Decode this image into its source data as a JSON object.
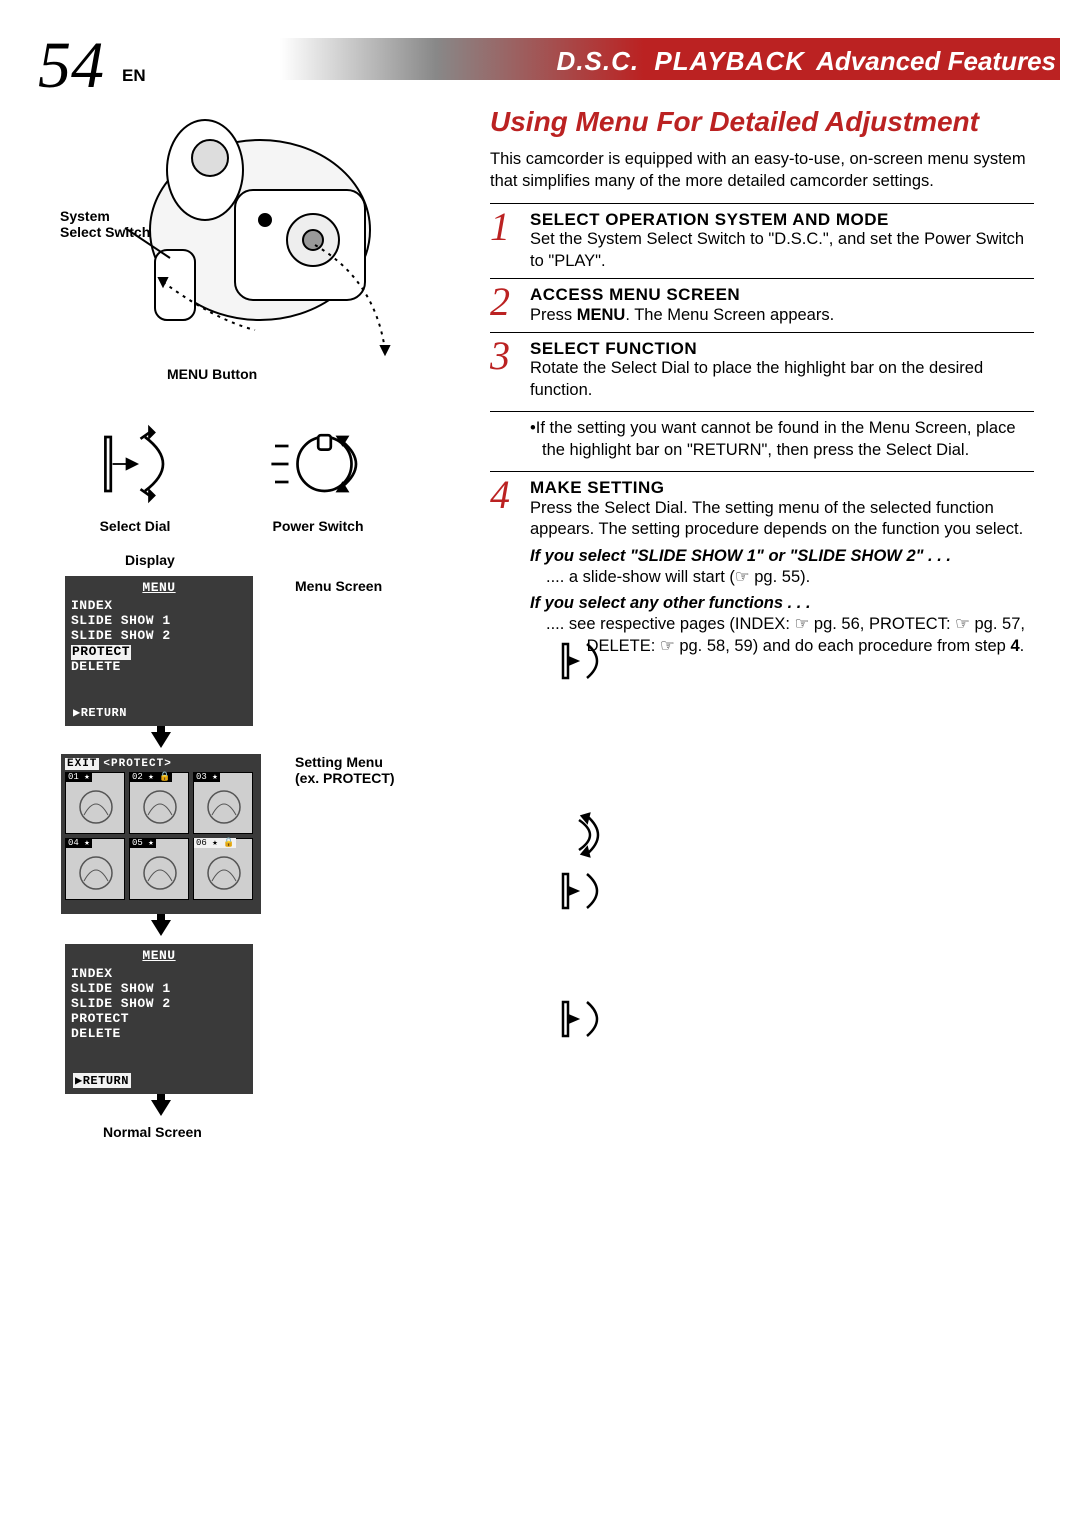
{
  "page": {
    "number": "54",
    "lang": "EN",
    "header": {
      "dsc": "D.S.C.",
      "playback": "PLAYBACK",
      "advanced": "Advanced Features"
    }
  },
  "colors": {
    "accent": "#b22",
    "menu_bg": "#3a3a3a",
    "menu_highlight": "#f2f2f2"
  },
  "left": {
    "labels": {
      "system_select": "System\nSelect Switch",
      "menu_button": "MENU Button",
      "select_dial": "Select Dial",
      "power_switch": "Power Switch",
      "display": "Display",
      "menu_screen": "Menu Screen",
      "setting_menu": "Setting Menu\n(ex. PROTECT)",
      "normal_screen": "Normal Screen"
    },
    "menu1": {
      "title": "MENU",
      "items": [
        "INDEX",
        "SLIDE  SHOW  1",
        "SLIDE  SHOW  2",
        "PROTECT",
        "DELETE"
      ],
      "highlighted_index": 3,
      "return": "▶RETURN"
    },
    "protect": {
      "header_exit": "EXIT",
      "header_title": "<PROTECT>",
      "cells": [
        {
          "num": "01",
          "star": true,
          "lock": false,
          "hl": false
        },
        {
          "num": "02",
          "star": true,
          "lock": true,
          "hl": false
        },
        {
          "num": "03",
          "star": true,
          "lock": false,
          "hl": false
        },
        {
          "num": "04",
          "star": true,
          "lock": false,
          "hl": false
        },
        {
          "num": "05",
          "star": true,
          "lock": false,
          "hl": false
        },
        {
          "num": "06",
          "star": true,
          "lock": true,
          "hl": true
        }
      ]
    },
    "menu2": {
      "title": "MENU",
      "items": [
        "INDEX",
        "SLIDE  SHOW  1",
        "SLIDE  SHOW  2",
        "PROTECT",
        "DELETE"
      ],
      "highlighted_return": true,
      "return": "▶RETURN"
    }
  },
  "right": {
    "title": "Using Menu For Detailed Adjustment",
    "intro": "This camcorder is equipped with an easy-to-use, on-screen menu system that simplifies many of the more detailed camcorder settings.",
    "steps": [
      {
        "num": "1",
        "heading": "SELECT OPERATION SYSTEM AND MODE",
        "text_before": "Set the System Select Switch to \"D.S.C.\", and set the Power Switch to \"",
        "bold_segment": "PL",
        "text_after": "AY\"."
      },
      {
        "num": "2",
        "heading": "ACCESS MENU SCREEN",
        "text": "Press MENU. The Menu Screen appears.",
        "bold": "MENU"
      },
      {
        "num": "3",
        "heading": "SELECT FUNCTION",
        "text": "Rotate the Select Dial to place the highlight bar on the desired function.",
        "note": "If the setting you want cannot be found in the Menu Screen, place the highlight bar on \"RETURN\", then press the Select Dial."
      },
      {
        "num": "4",
        "heading": "MAKE SETTING",
        "text": "Press the Select Dial. The setting menu of the selected function appears. The setting procedure depends on the function you select.",
        "cond1_heading": "If you select \"SLIDE SHOW 1\" or \"SLIDE SHOW 2\" . . .",
        "cond1_text": ".... a slide-show will start (☞ pg. 55).",
        "cond2_heading": "If you select any other functions . . .",
        "cond2_text": ".... see respective pages (INDEX: ☞ pg. 56, PROTECT: ☞ pg. 57,  DELETE: ☞ pg. 58, 59) and do each procedure from step 4.",
        "cond2_bold": "4"
      }
    ]
  }
}
